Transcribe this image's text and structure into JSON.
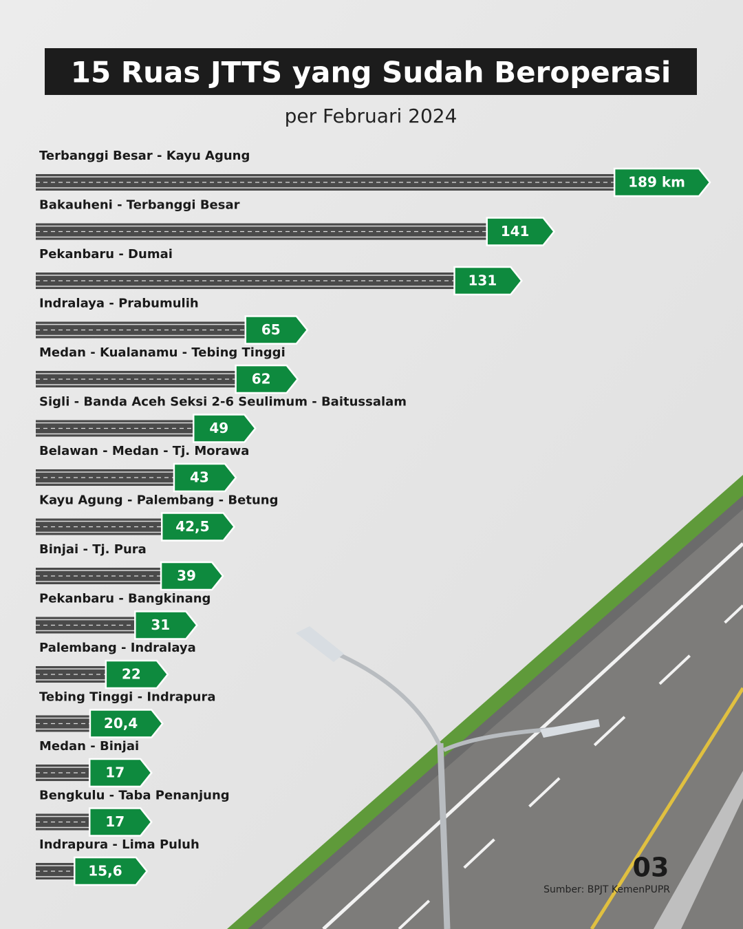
{
  "chart_data": {
    "type": "bar",
    "orientation": "horizontal",
    "title": "15 Ruas JTTS yang Sudah Beroperasi",
    "subtitle": "per Februari 2024",
    "categories": [
      "Terbanggi Besar - Kayu Agung",
      "Bakauheni - Terbanggi Besar",
      "Pekanbaru - Dumai",
      "Indralaya - Prabumulih",
      "Medan - Kualanamu - Tebing Tinggi",
      "Sigli - Banda Aceh Seksi 2-6 Seulimum - Baitussalam",
      "Belawan - Medan - Tj. Morawa",
      "Kayu Agung - Palembang - Betung",
      "Binjai - Tj. Pura",
      "Pekanbaru - Bangkinang",
      "Palembang - Indralaya",
      "Tebing Tinggi - Indrapura",
      "Medan - Binjai",
      "Bengkulu - Taba Penanjung",
      "Indrapura - Lima Puluh"
    ],
    "values": [
      189,
      141,
      131,
      65,
      62,
      49,
      43,
      42.5,
      39,
      31,
      22,
      20.4,
      17,
      17,
      15.6
    ],
    "value_labels": [
      "189 km",
      "141",
      "131",
      "65",
      "62",
      "49",
      "43",
      "42,5",
      "39",
      "31",
      "22",
      "20,4",
      "17",
      "17",
      "15,6"
    ],
    "color": "#0e8a3e",
    "road_color": "#4a4a4a",
    "page_number": "03",
    "source": "Sumber: BPJT KemenPUPR"
  }
}
